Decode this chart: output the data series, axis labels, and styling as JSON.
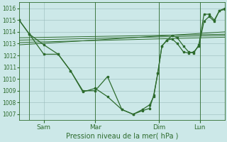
{
  "background_color": "#cce8e8",
  "grid_color": "#99bbbb",
  "line_color": "#2d6b2d",
  "xlabel_text": "Pression niveau de la mer( hPa )",
  "xtick_labels": [
    "Sam",
    "Mar",
    "Dim",
    "Lun"
  ],
  "xtick_positions": [
    0.12,
    0.37,
    0.68,
    0.88
  ],
  "ylim": [
    1006.5,
    1016.5
  ],
  "yticks": [
    1007,
    1008,
    1009,
    1010,
    1011,
    1012,
    1013,
    1014,
    1015,
    1016
  ],
  "xlim": [
    0,
    1.0
  ],
  "vline_positions": [
    0.05,
    0.37,
    0.68,
    0.88
  ],
  "main_line1_x": [
    0.0,
    0.05,
    0.12,
    0.19,
    0.25,
    0.31,
    0.37,
    0.43,
    0.5,
    0.555,
    0.6,
    0.635,
    0.655,
    0.675,
    0.695,
    0.72,
    0.745,
    0.77,
    0.8,
    0.825,
    0.85,
    0.875,
    0.9,
    0.925,
    0.95,
    0.975,
    1.0
  ],
  "main_line1_y": [
    1015.0,
    1013.8,
    1012.9,
    1012.1,
    1010.7,
    1009.0,
    1009.0,
    1010.2,
    1007.4,
    1007.0,
    1007.3,
    1007.5,
    1008.6,
    1010.5,
    1012.8,
    1013.3,
    1013.4,
    1013.0,
    1012.3,
    1012.2,
    1012.3,
    1012.8,
    1014.9,
    1015.3,
    1014.9,
    1015.8,
    1015.9
  ],
  "trend1_x": [
    0.0,
    1.0
  ],
  "trend1_y": [
    1012.9,
    1014.0
  ],
  "trend2_x": [
    0.0,
    1.0
  ],
  "trend2_y": [
    1013.1,
    1013.55
  ],
  "trend3_x": [
    0.0,
    1.0
  ],
  "trend3_y": [
    1013.3,
    1013.7
  ],
  "trend4_x": [
    0.0,
    1.0
  ],
  "trend4_y": [
    1013.5,
    1013.8
  ],
  "main_line2_x": [
    0.0,
    0.05,
    0.12,
    0.19,
    0.25,
    0.31,
    0.37,
    0.43,
    0.5,
    0.555,
    0.6,
    0.635,
    0.655,
    0.675,
    0.695,
    0.72,
    0.745,
    0.77,
    0.8,
    0.825,
    0.85,
    0.875,
    0.9,
    0.925,
    0.95,
    0.975,
    1.0
  ],
  "main_line2_y": [
    1015.0,
    1013.8,
    1012.1,
    1012.1,
    1010.7,
    1008.9,
    1009.2,
    1008.5,
    1007.4,
    1007.0,
    1007.4,
    1007.8,
    1008.5,
    1010.5,
    1012.8,
    1013.3,
    1013.7,
    1013.5,
    1012.8,
    1012.3,
    1012.2,
    1012.9,
    1015.5,
    1015.5,
    1015.0,
    1015.8,
    1016.0
  ],
  "figsize": [
    3.2,
    2.0
  ],
  "dpi": 100
}
